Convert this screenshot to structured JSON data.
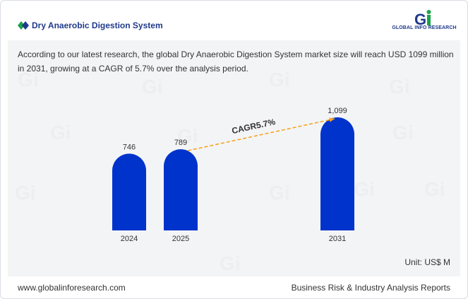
{
  "header": {
    "title": "Dry Anaerobic Digestion System",
    "logo_text": "GLOBAL INFO RESEARCH"
  },
  "description": "According to our latest research, the global Dry Anaerobic Digestion System market size will reach USD 1099 million in 2031, growing at a CAGR of 5.7% over the analysis period.",
  "unit_label": "Unit: US$ M",
  "footer": {
    "website": "www.globalinforesearch.com",
    "tagline": "Business Risk & Industry Analysis Reports"
  },
  "colors": {
    "bar": "#0033cc",
    "cagr_arrow": "#f5a623",
    "title": "#1f3a8a"
  },
  "chart_data": {
    "type": "bar",
    "categories": [
      "2024",
      "2025",
      "2031"
    ],
    "values": [
      746,
      789,
      1099
    ],
    "value_labels": [
      "746",
      "789",
      "1,099"
    ],
    "annotation": "CAGR5.7%",
    "ylim": [
      0,
      1099
    ]
  }
}
